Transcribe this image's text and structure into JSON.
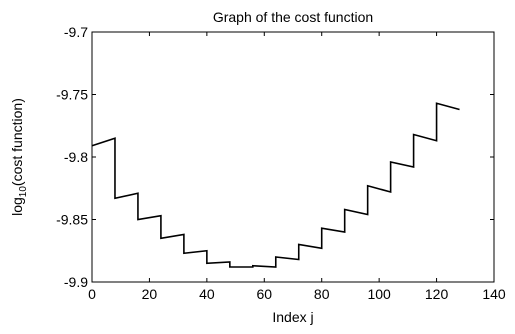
{
  "chart_data": {
    "type": "line",
    "title": "Graph of the cost function",
    "xlabel": "Index j",
    "ylabel_prefix": "log",
    "ylabel_subscript": "10",
    "ylabel_suffix": "(cost function)",
    "xlim": [
      0,
      140
    ],
    "ylim": [
      -9.9,
      -9.7
    ],
    "xticks": [
      0,
      20,
      40,
      60,
      80,
      100,
      120,
      140
    ],
    "xtick_labels": [
      "0",
      "20",
      "40",
      "60",
      "80",
      "100",
      "120",
      "140"
    ],
    "yticks": [
      -9.9,
      -9.85,
      -9.8,
      -9.75,
      -9.7
    ],
    "ytick_labels": [
      "-9.9",
      "-9.85",
      "-9.8",
      "-9.75",
      "-9.7"
    ],
    "grid": false,
    "color": "#000000",
    "series": [
      {
        "x": [
          0,
          8,
          8,
          16,
          16,
          24,
          24,
          32,
          32,
          40,
          40,
          48,
          48,
          56,
          56,
          64,
          64,
          72,
          72,
          80,
          80,
          88,
          88,
          96,
          96,
          104,
          104,
          112,
          112,
          120,
          120,
          128
        ],
        "y": [
          -9.791,
          -9.785,
          -9.833,
          -9.829,
          -9.85,
          -9.847,
          -9.865,
          -9.862,
          -9.877,
          -9.875,
          -9.885,
          -9.884,
          -9.888,
          -9.888,
          -9.887,
          -9.888,
          -9.88,
          -9.882,
          -9.87,
          -9.873,
          -9.857,
          -9.86,
          -9.842,
          -9.846,
          -9.823,
          -9.828,
          -9.804,
          -9.808,
          -9.782,
          -9.787,
          -9.757,
          -9.762
        ]
      }
    ]
  }
}
